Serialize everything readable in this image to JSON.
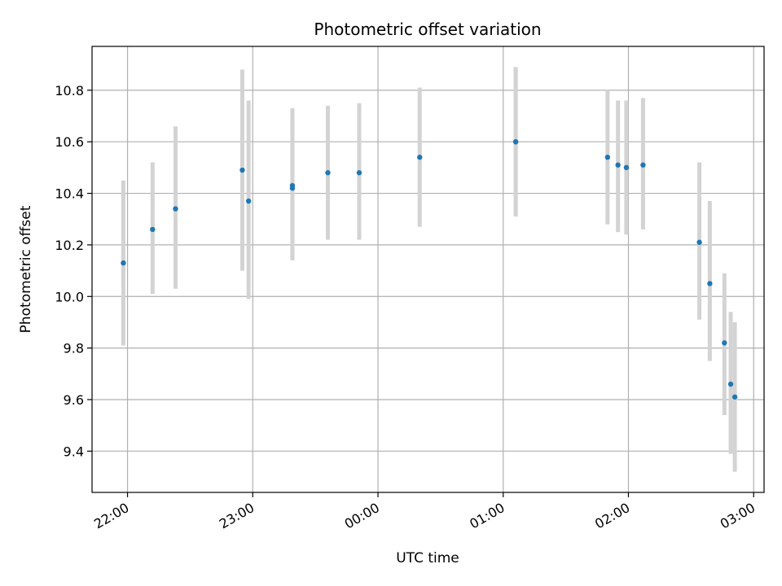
{
  "chart_data": {
    "type": "scatter",
    "title": "Photometric offset variation",
    "xlabel": "UTC time",
    "ylabel": "Photometric offset",
    "xlim": [
      "21:43",
      "03:05"
    ],
    "ylim": [
      9.24,
      10.97
    ],
    "x_ticks": [
      "22:00",
      "23:00",
      "00:00",
      "01:00",
      "02:00",
      "03:00"
    ],
    "y_ticks": [
      "9.4",
      "9.6",
      "9.8",
      "10.0",
      "10.2",
      "10.4",
      "10.6",
      "10.8"
    ],
    "grid": true,
    "colors": {
      "point": "#1f77b4",
      "errorbar": "#d3d3d3",
      "grid": "#b0b0b0"
    },
    "points": [
      {
        "t": "21:58",
        "y": 10.13,
        "ylow": 9.81,
        "yhigh": 10.45
      },
      {
        "t": "22:12",
        "y": 10.26,
        "ylow": 10.01,
        "yhigh": 10.52
      },
      {
        "t": "22:23",
        "y": 10.34,
        "ylow": 10.03,
        "yhigh": 10.66
      },
      {
        "t": "22:55",
        "y": 10.49,
        "ylow": 10.1,
        "yhigh": 10.88
      },
      {
        "t": "22:58",
        "y": 10.37,
        "ylow": 9.99,
        "yhigh": 10.76
      },
      {
        "t": "23:19",
        "y": 10.42,
        "ylow": 10.16,
        "yhigh": 10.7
      },
      {
        "t": "23:19",
        "y": 10.43,
        "ylow": 10.14,
        "yhigh": 10.73
      },
      {
        "t": "23:36",
        "y": 10.48,
        "ylow": 10.22,
        "yhigh": 10.74
      },
      {
        "t": "23:51",
        "y": 10.48,
        "ylow": 10.22,
        "yhigh": 10.75
      },
      {
        "t": "00:20",
        "y": 10.54,
        "ylow": 10.27,
        "yhigh": 10.81
      },
      {
        "t": "01:06",
        "y": 10.6,
        "ylow": 10.31,
        "yhigh": 10.89
      },
      {
        "t": "01:06",
        "y": 10.6,
        "ylow": 10.32,
        "yhigh": 10.88
      },
      {
        "t": "01:50",
        "y": 10.54,
        "ylow": 10.28,
        "yhigh": 10.8
      },
      {
        "t": "01:55",
        "y": 10.51,
        "ylow": 10.25,
        "yhigh": 10.76
      },
      {
        "t": "01:59",
        "y": 10.5,
        "ylow": 10.24,
        "yhigh": 10.76
      },
      {
        "t": "02:07",
        "y": 10.51,
        "ylow": 10.26,
        "yhigh": 10.77
      },
      {
        "t": "02:34",
        "y": 10.21,
        "ylow": 9.91,
        "yhigh": 10.52
      },
      {
        "t": "02:39",
        "y": 10.05,
        "ylow": 9.75,
        "yhigh": 10.37
      },
      {
        "t": "02:46",
        "y": 9.82,
        "ylow": 9.54,
        "yhigh": 10.09
      },
      {
        "t": "02:49",
        "y": 9.66,
        "ylow": 9.39,
        "yhigh": 9.94
      },
      {
        "t": "02:51",
        "y": 9.61,
        "ylow": 9.32,
        "yhigh": 9.9
      }
    ]
  }
}
